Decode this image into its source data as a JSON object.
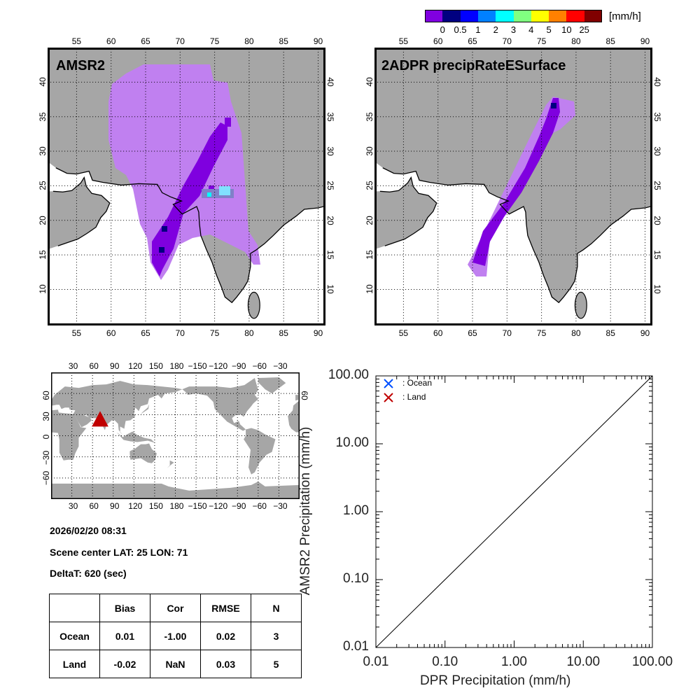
{
  "colorbar": {
    "unit": "[mm/h]",
    "colors": [
      "#8000e0",
      "#000080",
      "#0000ff",
      "#0080ff",
      "#00ffff",
      "#80ff80",
      "#ffff00",
      "#ff8000",
      "#ff0000",
      "#800000"
    ],
    "labels": [
      "0",
      "0.5",
      "1",
      "2",
      "3",
      "4",
      "5",
      "10",
      "25"
    ]
  },
  "map_left": {
    "title": "AMSR2"
  },
  "map_right": {
    "title": "2ADPR precipRateESurface"
  },
  "map_axes": {
    "lon_labels": [
      "55",
      "60",
      "65",
      "70",
      "75",
      "80",
      "85",
      "90"
    ],
    "lat_labels": [
      "10",
      "15",
      "20",
      "25",
      "30",
      "35",
      "40"
    ]
  },
  "world_map": {
    "lon_labels": [
      "30",
      "60",
      "90",
      "120",
      "150",
      "180",
      "−150",
      "−120",
      "−90",
      "−60",
      "−30"
    ],
    "lat_labels": [
      "60",
      "30",
      "0",
      "−30",
      "−60"
    ],
    "marker": {
      "lat": 25,
      "lon": 71,
      "color": "#c00000",
      "shape": "triangle"
    }
  },
  "info": {
    "datetime": "2026/02/20 08:31",
    "scene_center": "Scene center LAT: 25   LON:  71",
    "deltat": "DeltaT:  620 (sec)"
  },
  "stats_table": {
    "headers": [
      "",
      "Bias",
      "Cor",
      "RMSE",
      "N"
    ],
    "rows": [
      [
        "Ocean",
        "0.01",
        "-1.00",
        "0.02",
        "3"
      ],
      [
        "Land",
        "-0.02",
        "NaN",
        "0.03",
        "5"
      ]
    ]
  },
  "chart_data": {
    "type": "scatter",
    "xlabel": "DPR Precipitation (mm/h)",
    "ylabel": "AMSR2 Precipitation (mm/h)",
    "xscale": "log",
    "yscale": "log",
    "xlim": [
      0.01,
      100
    ],
    "ylim": [
      0.01,
      100
    ],
    "xtick_labels": [
      "0.01",
      "0.10",
      "1.00",
      "10.00",
      "100.00"
    ],
    "ytick_labels": [
      "0.01",
      "0.10",
      "1.00",
      "10.00",
      "100.00"
    ],
    "reference_line": "y=x",
    "legend": {
      "placement": "top-left",
      "entries": [
        {
          "label": ": Ocean",
          "marker": "x",
          "color": "#0050ff"
        },
        {
          "label": ": Land",
          "marker": "x",
          "color": "#c00000"
        }
      ]
    },
    "series": [
      {
        "name": "Ocean",
        "points": []
      },
      {
        "name": "Land",
        "points": []
      }
    ]
  }
}
